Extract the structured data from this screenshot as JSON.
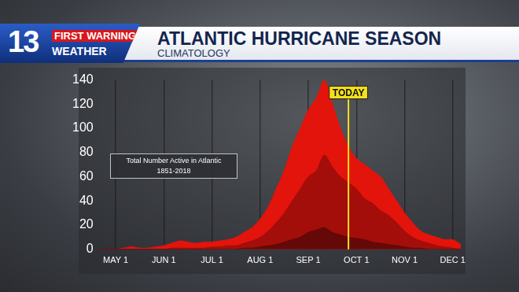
{
  "header": {
    "logo": "13",
    "brand": [
      "FIRST WARNING",
      "WEATHER"
    ]
  },
  "chart_data": {
    "type": "area",
    "title": "ATLANTIC HURRICANE SEASON",
    "subtitle": "CLIMATOLOGY",
    "categories": [
      null,
      null,
      "MAY 1",
      null,
      null,
      null,
      null,
      null,
      "JUN 1",
      null,
      null,
      null,
      null,
      null,
      "JUL 1",
      null,
      null,
      null,
      null,
      null,
      "AUG 1",
      null,
      null,
      null,
      null,
      null,
      "SEP 1",
      null,
      null,
      null,
      null,
      null,
      "OCT 1",
      null,
      null,
      null,
      null,
      null,
      "NOV 1",
      null,
      null,
      null,
      null,
      null,
      "DEC 1",
      null
    ],
    "series": [
      {
        "color": "#e3140c",
        "values": [
          0,
          0,
          0,
          1,
          2,
          1,
          1,
          2,
          3,
          5,
          7,
          6,
          5,
          6,
          6,
          7,
          8,
          10,
          14,
          18,
          25,
          35,
          50,
          65,
          85,
          100,
          115,
          125,
          140,
          120,
          100,
          85,
          75,
          70,
          65,
          60,
          50,
          40,
          30,
          22,
          15,
          12,
          10,
          8,
          8,
          4
        ]
      },
      {
        "color": "#a30e0b",
        "values": [
          0,
          0,
          0,
          0,
          0,
          0,
          0,
          0,
          0,
          1,
          1,
          1,
          1,
          1,
          2,
          2,
          3,
          3,
          5,
          7,
          10,
          15,
          22,
          30,
          40,
          50,
          60,
          65,
          78,
          68,
          60,
          55,
          50,
          42,
          38,
          32,
          28,
          22,
          15,
          10,
          7,
          5,
          3,
          2,
          1,
          0
        ]
      },
      {
        "color": "#640907",
        "values": [
          0,
          0,
          0,
          0,
          0,
          0,
          0,
          0,
          0,
          0,
          0,
          0,
          0,
          0,
          0,
          0,
          0,
          0,
          1,
          1,
          2,
          3,
          4,
          6,
          8,
          10,
          14,
          16,
          18,
          14,
          12,
          10,
          9,
          8,
          6,
          5,
          4,
          3,
          2,
          1,
          1,
          0,
          0,
          0,
          0,
          0
        ]
      }
    ],
    "ylim": [
      0,
      140
    ],
    "yticks": [
      0,
      20,
      40,
      60,
      80,
      100,
      120,
      140
    ],
    "grid": true,
    "annotations": [
      {
        "text": "TODAY",
        "x": 31
      }
    ],
    "note": [
      "Total Number Active in Atlantic",
      "1851-2018"
    ]
  }
}
